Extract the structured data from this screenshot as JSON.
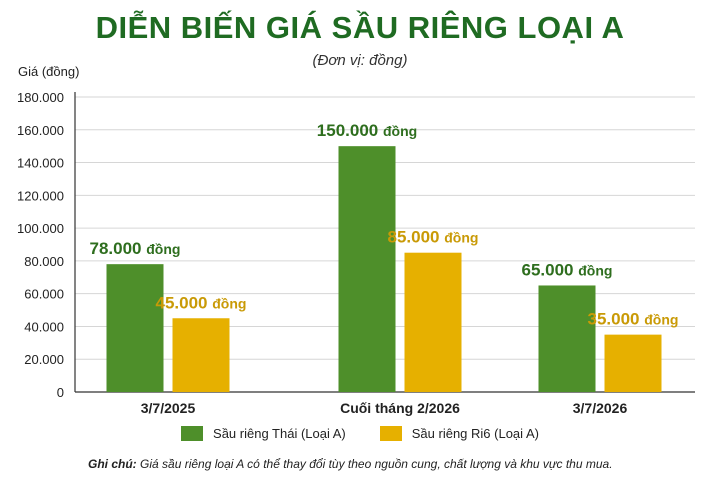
{
  "title": "DIỄN BIẾN GIÁ SẦU RIÊNG LOẠI A",
  "subtitle": "(Đơn vị: đồng)",
  "y_axis_title": "Giá (đồng)",
  "note": {
    "label": "Ghi chú:",
    "text": "Giá sầu riêng loại A có thể thay đổi tùy theo nguồn cung, chất lượng và khu vực thu mua."
  },
  "colors": {
    "title": "#1f6b22",
    "series_thai": "#4e8f2a",
    "series_ri6": "#e6b000",
    "label_thai": "#2e6e1e",
    "label_ri6": "#c99a06"
  },
  "chart_data": {
    "type": "bar",
    "categories": [
      "3/7/2025",
      "Cuối tháng 2/2026",
      "3/7/2026"
    ],
    "series": [
      {
        "name": "Sầu riêng Thái (Loại A)",
        "values": [
          78000,
          150000,
          65000
        ],
        "labels": [
          "78.000 đồng",
          "150.000 đồng",
          "65.000 đồng"
        ]
      },
      {
        "name": "Sầu riêng Ri6 (Loại A)",
        "values": [
          45000,
          85000,
          35000
        ],
        "labels": [
          "45.000 đồng",
          "85.000 đồng",
          "35.000 đồng"
        ]
      }
    ],
    "ylim": [
      0,
      180000
    ],
    "yticks": [
      "0",
      "20.000",
      "40.000",
      "60.000",
      "80.000",
      "100.000",
      "120.000",
      "140.000",
      "160.000",
      "180.000"
    ],
    "grid": true,
    "legend_position": "bottom"
  }
}
